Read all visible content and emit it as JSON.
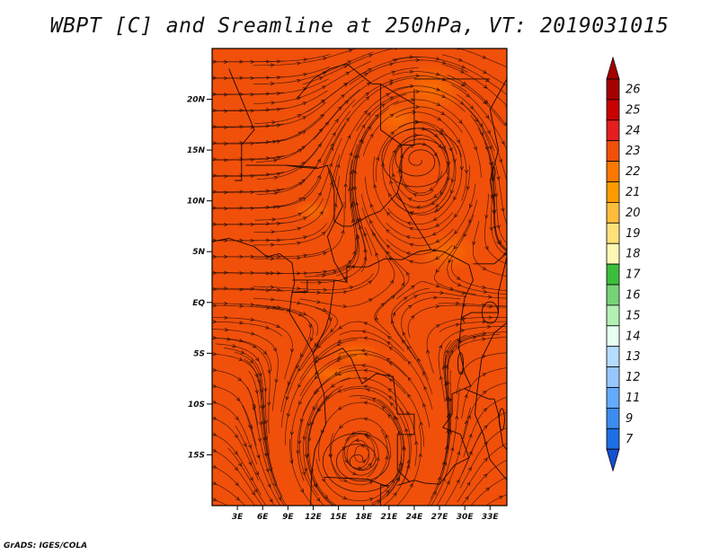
{
  "title": "WBPT [C] and Sreamline at 250hPa, VT: 2019031015",
  "credit": "GrADS: IGES/COLA",
  "map": {
    "lon_range": [
      0,
      35
    ],
    "lat_range": [
      -20,
      25
    ],
    "lat_ticks": [
      {
        "value": 20,
        "label": "20N"
      },
      {
        "value": 15,
        "label": "15N"
      },
      {
        "value": 10,
        "label": "10N"
      },
      {
        "value": 5,
        "label": "5N"
      },
      {
        "value": 0,
        "label": "EQ"
      },
      {
        "value": -5,
        "label": "5S"
      },
      {
        "value": -10,
        "label": "10S"
      },
      {
        "value": -15,
        "label": "15S"
      }
    ],
    "lon_ticks": [
      {
        "value": 3,
        "label": "3E"
      },
      {
        "value": 6,
        "label": "6E"
      },
      {
        "value": 9,
        "label": "9E"
      },
      {
        "value": 12,
        "label": "12E"
      },
      {
        "value": 15,
        "label": "15E"
      },
      {
        "value": 18,
        "label": "18E"
      },
      {
        "value": 21,
        "label": "21E"
      },
      {
        "value": 24,
        "label": "24E"
      },
      {
        "value": 27,
        "label": "27E"
      },
      {
        "value": 30,
        "label": "30E"
      },
      {
        "value": 33,
        "label": "33E"
      }
    ],
    "background_color": "#f0500a",
    "vortices": [
      {
        "name": "northern anticyclone",
        "lon": 24.5,
        "lat": 14
      },
      {
        "name": "southern anticyclone",
        "lon": 17.5,
        "lat": -15.5
      }
    ]
  },
  "colorbar": {
    "levels": [
      {
        "label": "26",
        "color": "#a50000"
      },
      {
        "label": "25",
        "color": "#c80000"
      },
      {
        "label": "24",
        "color": "#e41e1e"
      },
      {
        "label": "23",
        "color": "#f0500a"
      },
      {
        "label": "22",
        "color": "#fa7800"
      },
      {
        "label": "21",
        "color": "#ff9b00"
      },
      {
        "label": "20",
        "color": "#ffbd3c"
      },
      {
        "label": "19",
        "color": "#ffe178"
      },
      {
        "label": "18",
        "color": "#fff8b4"
      },
      {
        "label": "17",
        "color": "#3cbe3c"
      },
      {
        "label": "16",
        "color": "#78d278"
      },
      {
        "label": "15",
        "color": "#b4f0b4"
      },
      {
        "label": "14",
        "color": "#e6fff0"
      },
      {
        "label": "13",
        "color": "#b4dcff"
      },
      {
        "label": "12",
        "color": "#96c8ff"
      },
      {
        "label": "11",
        "color": "#64aaff"
      },
      {
        "label": "9",
        "color": "#3c8cf0"
      },
      {
        "label": "7",
        "color": "#1e6ee6"
      }
    ],
    "bottom_color": "#1450d2"
  }
}
